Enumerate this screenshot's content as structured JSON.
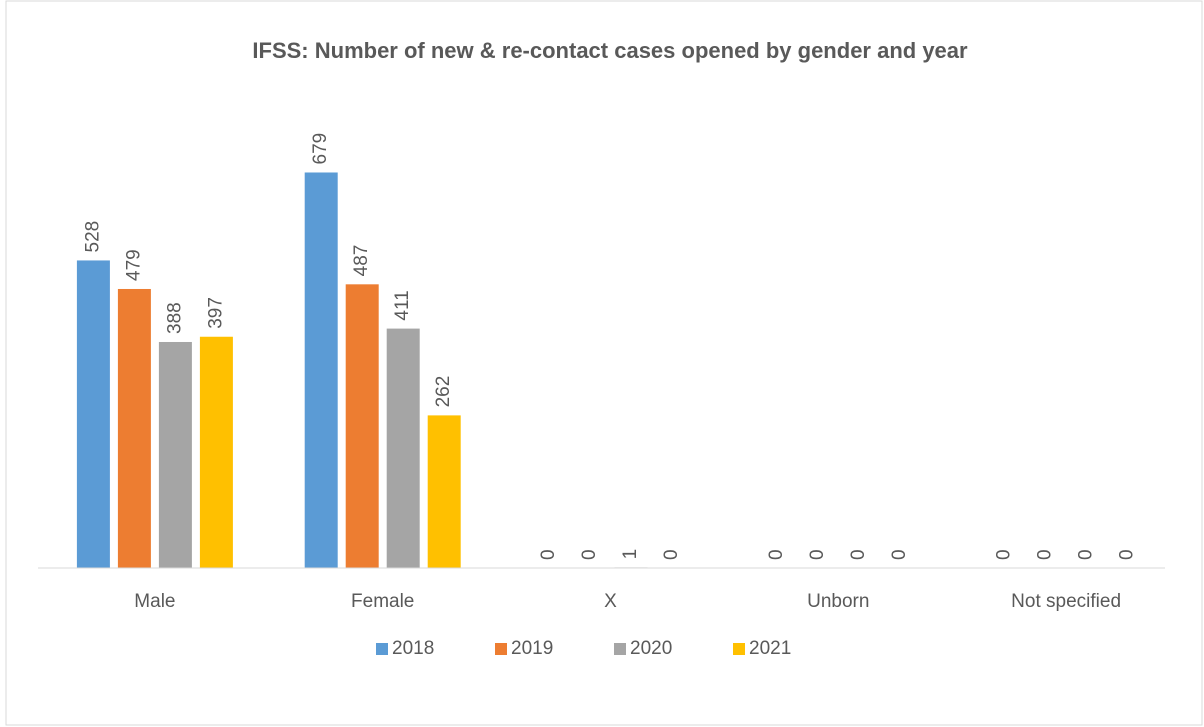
{
  "chart_data": {
    "type": "bar",
    "title": "IFSS: Number of new & re-contact cases opened by gender and year",
    "categories": [
      "Male",
      "Female",
      "X",
      "Unborn",
      "Not specified"
    ],
    "series": [
      {
        "name": "2018",
        "color": "#5b9bd5",
        "values": [
          528,
          679,
          0,
          0,
          0
        ]
      },
      {
        "name": "2019",
        "color": "#ed7d31",
        "values": [
          479,
          487,
          0,
          0,
          0
        ]
      },
      {
        "name": "2020",
        "color": "#a5a5a5",
        "values": [
          388,
          411,
          1,
          0,
          0
        ]
      },
      {
        "name": "2021",
        "color": "#ffc000",
        "values": [
          397,
          262,
          0,
          0,
          0
        ]
      }
    ],
    "ylim": [
      0,
      800
    ],
    "legend": "bottom"
  }
}
